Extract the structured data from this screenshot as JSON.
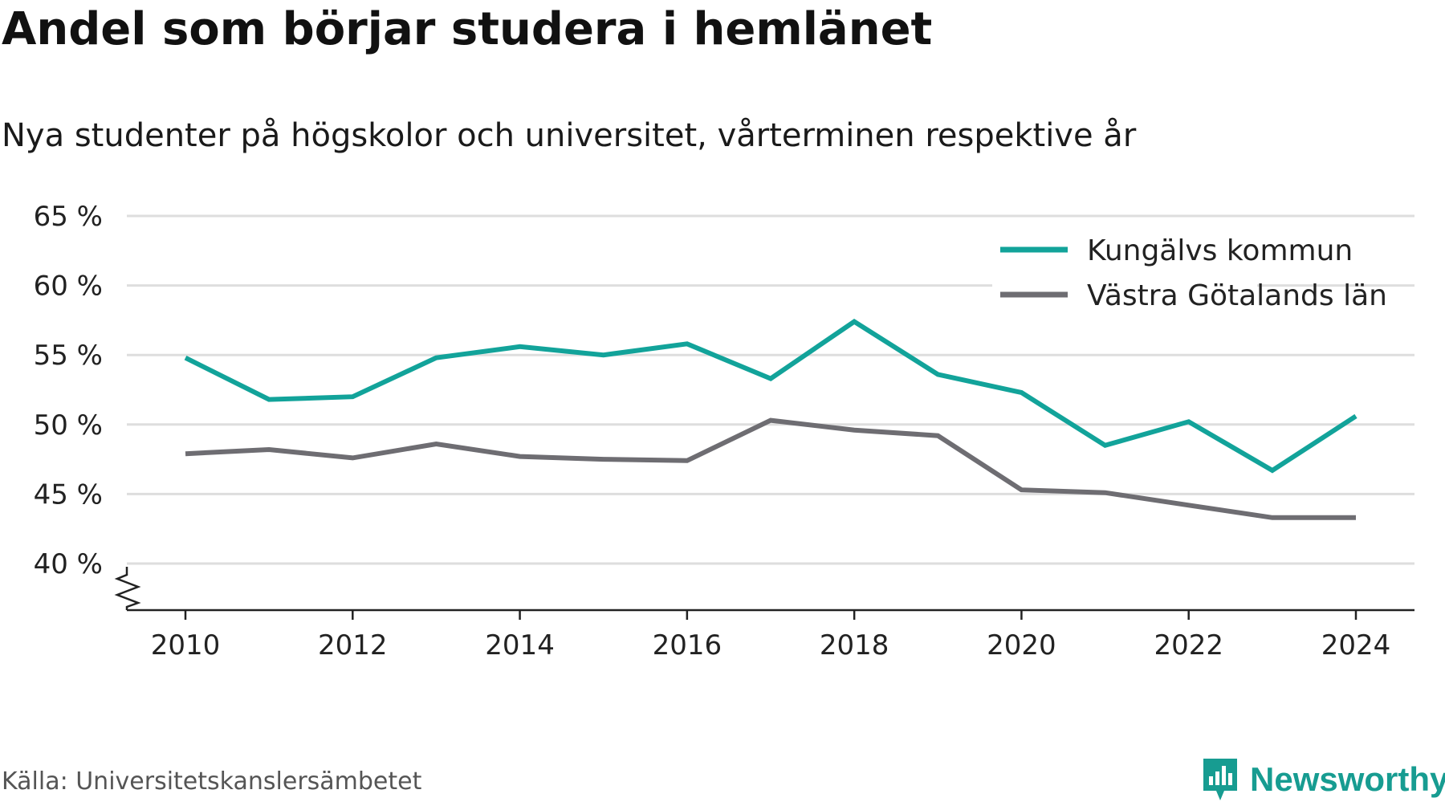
{
  "title": "Andel som börjar studera i hemlänet",
  "subtitle": "Nya studenter på högskolor och universitet, vårterminen respektive år",
  "source": "Källa: Universitetskanslersämbetet",
  "brand": "Newsworthy",
  "colors": {
    "teal": "#12a39a",
    "gray": "#6e6d72",
    "grid": "#dedede",
    "axis": "#222222",
    "brand": "#179c91"
  },
  "chart_data": {
    "type": "line",
    "title": "Andel som börjar studera i hemlänet",
    "subtitle": "Nya studenter på högskolor och universitet, vårterminen respektive år",
    "x": [
      2010,
      2011,
      2012,
      2013,
      2014,
      2015,
      2016,
      2017,
      2018,
      2019,
      2020,
      2021,
      2022,
      2023,
      2024
    ],
    "x_ticks": [
      2010,
      2012,
      2014,
      2016,
      2018,
      2020,
      2022,
      2024
    ],
    "y_ticks": [
      40,
      45,
      50,
      55,
      60,
      65
    ],
    "y_tick_labels": [
      "40 %",
      "45 %",
      "50 %",
      "55 %",
      "60 %",
      "65 %"
    ],
    "ylim": [
      40,
      65
    ],
    "xlabel": "",
    "ylabel": "",
    "grid": true,
    "y_axis_break": true,
    "legend_position": "top-right",
    "series": [
      {
        "name": "Kungälvs kommun",
        "color": "#12a39a",
        "values": [
          54.8,
          51.8,
          52.0,
          54.8,
          55.6,
          55.0,
          55.8,
          53.3,
          57.4,
          53.6,
          52.3,
          48.5,
          50.2,
          46.7,
          50.6
        ]
      },
      {
        "name": "Västra Götalands län",
        "color": "#6e6d72",
        "values": [
          47.9,
          48.2,
          47.6,
          48.6,
          47.7,
          47.5,
          47.4,
          50.3,
          49.6,
          49.2,
          45.3,
          45.1,
          44.2,
          43.3,
          43.3
        ]
      }
    ]
  }
}
